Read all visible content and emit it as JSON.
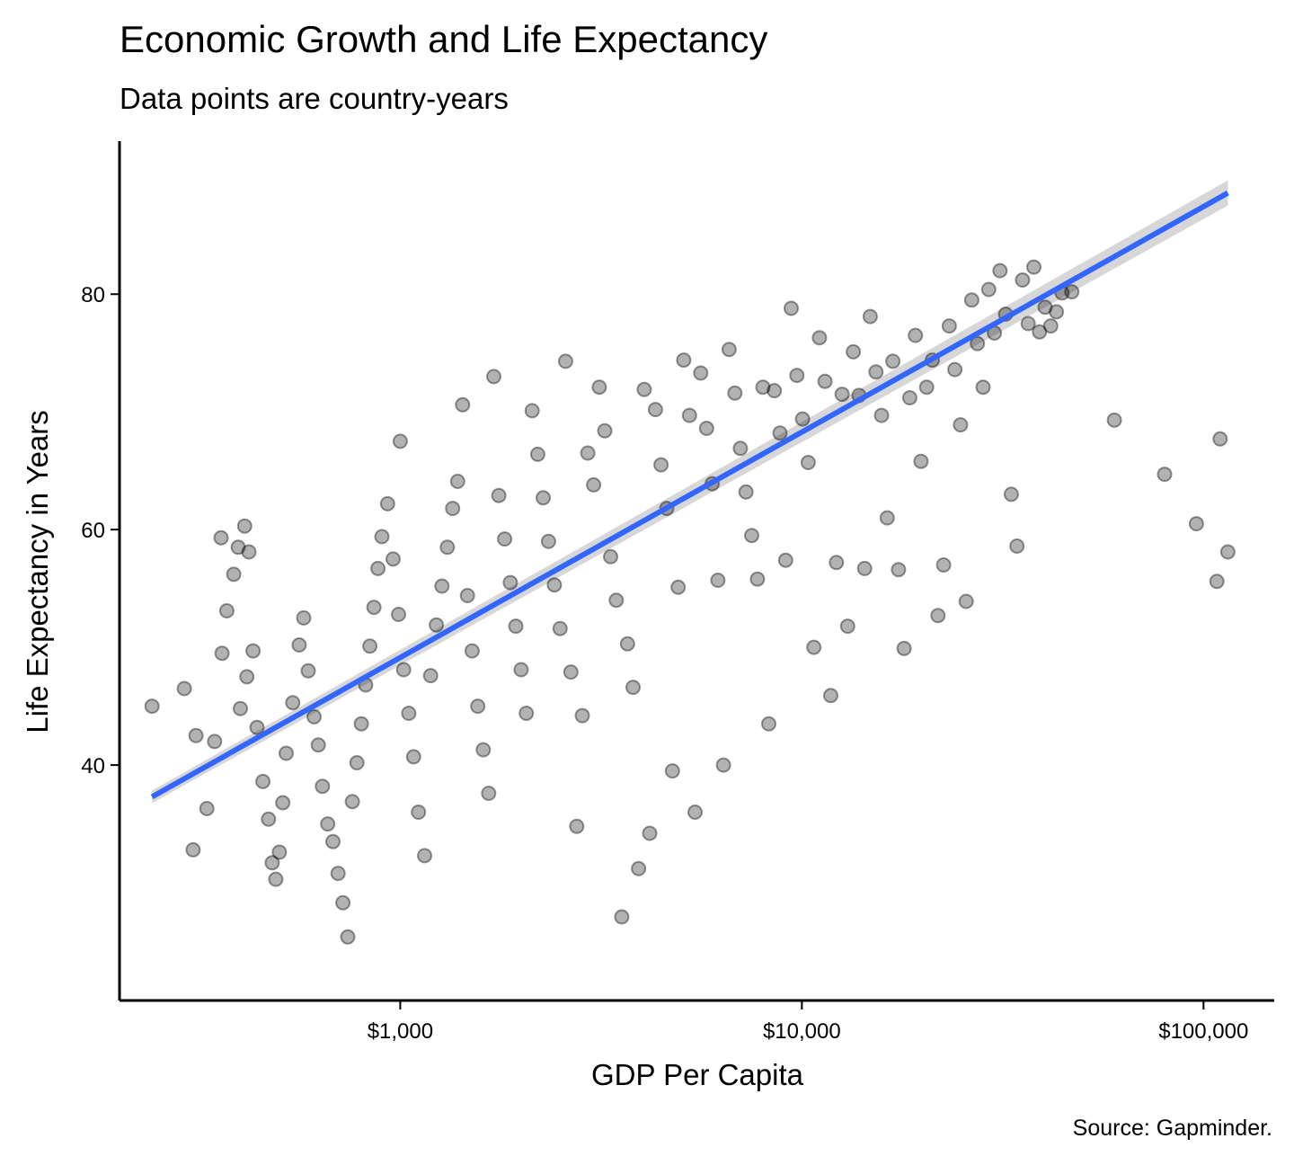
{
  "chart_data": {
    "type": "scatter",
    "title": "Economic Growth and Life Expectancy",
    "subtitle": "Data points are country-years",
    "caption": "Source: Gapminder.",
    "xlabel": "GDP Per Capita",
    "ylabel": "Life Expectancy in Years",
    "x_scale": "log10",
    "xlim": [
      200,
      150000
    ],
    "ylim": [
      20,
      93
    ],
    "x_ticks": [
      {
        "value": 1000,
        "label": "$1,000"
      },
      {
        "value": 10000,
        "label": "$10,000"
      },
      {
        "value": 100000,
        "label": "$100,000"
      }
    ],
    "y_ticks": [
      {
        "value": 40,
        "label": "40"
      },
      {
        "value": 60,
        "label": "60"
      },
      {
        "value": 80,
        "label": "80"
      }
    ],
    "grid": false,
    "point_color": "#000000",
    "point_opacity": 0.3,
    "trend": {
      "method": "linear fit on log10(x)",
      "color": "#3366FF",
      "band_color": "#D3D3D3",
      "points": [
        [
          241,
          37.3
        ],
        [
          115000,
          88.6
        ]
      ]
    },
    "points": [
      [
        241,
        45.0
      ],
      [
        290,
        46.5
      ],
      [
        310,
        42.5
      ],
      [
        305,
        32.8
      ],
      [
        330,
        36.3
      ],
      [
        345,
        42.0
      ],
      [
        358,
        59.3
      ],
      [
        370,
        53.1
      ],
      [
        385,
        56.2
      ],
      [
        395,
        58.5
      ],
      [
        410,
        60.3
      ],
      [
        420,
        58.1
      ],
      [
        360,
        49.5
      ],
      [
        400,
        44.8
      ],
      [
        415,
        47.5
      ],
      [
        430,
        49.7
      ],
      [
        440,
        43.2
      ],
      [
        455,
        38.6
      ],
      [
        470,
        35.4
      ],
      [
        480,
        31.7
      ],
      [
        490,
        30.3
      ],
      [
        500,
        32.6
      ],
      [
        510,
        36.8
      ],
      [
        520,
        41.0
      ],
      [
        540,
        45.3
      ],
      [
        560,
        50.2
      ],
      [
        575,
        52.5
      ],
      [
        590,
        48.0
      ],
      [
        610,
        44.1
      ],
      [
        625,
        41.7
      ],
      [
        640,
        38.2
      ],
      [
        660,
        35.0
      ],
      [
        680,
        33.5
      ],
      [
        700,
        30.8
      ],
      [
        720,
        28.3
      ],
      [
        740,
        25.4
      ],
      [
        760,
        36.9
      ],
      [
        780,
        40.2
      ],
      [
        800,
        43.5
      ],
      [
        820,
        46.8
      ],
      [
        840,
        50.1
      ],
      [
        860,
        53.4
      ],
      [
        880,
        56.7
      ],
      [
        900,
        59.4
      ],
      [
        930,
        62.2
      ],
      [
        960,
        57.5
      ],
      [
        990,
        52.8
      ],
      [
        1000,
        67.5
      ],
      [
        1020,
        48.1
      ],
      [
        1050,
        44.4
      ],
      [
        1080,
        40.7
      ],
      [
        1110,
        36.0
      ],
      [
        1150,
        32.3
      ],
      [
        1190,
        47.6
      ],
      [
        1230,
        51.9
      ],
      [
        1270,
        55.2
      ],
      [
        1310,
        58.5
      ],
      [
        1350,
        61.8
      ],
      [
        1390,
        64.1
      ],
      [
        1430,
        70.6
      ],
      [
        1470,
        54.4
      ],
      [
        1510,
        49.7
      ],
      [
        1560,
        45.0
      ],
      [
        1610,
        41.3
      ],
      [
        1660,
        37.6
      ],
      [
        1710,
        73.0
      ],
      [
        1760,
        62.9
      ],
      [
        1820,
        59.2
      ],
      [
        1880,
        55.5
      ],
      [
        1940,
        51.8
      ],
      [
        2000,
        48.1
      ],
      [
        2060,
        44.4
      ],
      [
        2130,
        70.1
      ],
      [
        2200,
        66.4
      ],
      [
        2270,
        62.7
      ],
      [
        2340,
        59.0
      ],
      [
        2420,
        55.3
      ],
      [
        2500,
        51.6
      ],
      [
        2580,
        74.3
      ],
      [
        2660,
        47.9
      ],
      [
        2750,
        34.8
      ],
      [
        2840,
        44.2
      ],
      [
        2930,
        66.5
      ],
      [
        3030,
        63.8
      ],
      [
        3130,
        72.1
      ],
      [
        3230,
        68.4
      ],
      [
        3340,
        57.7
      ],
      [
        3450,
        54.0
      ],
      [
        3560,
        27.1
      ],
      [
        3680,
        50.3
      ],
      [
        3800,
        46.6
      ],
      [
        3920,
        31.2
      ],
      [
        4050,
        71.9
      ],
      [
        4180,
        34.2
      ],
      [
        4320,
        70.2
      ],
      [
        4460,
        65.5
      ],
      [
        4610,
        61.8
      ],
      [
        4760,
        39.5
      ],
      [
        4920,
        55.1
      ],
      [
        5080,
        74.4
      ],
      [
        5250,
        69.7
      ],
      [
        5420,
        36.0
      ],
      [
        5600,
        73.3
      ],
      [
        5790,
        68.6
      ],
      [
        5980,
        63.9
      ],
      [
        6180,
        55.7
      ],
      [
        6380,
        40.0
      ],
      [
        6590,
        75.3
      ],
      [
        6810,
        71.6
      ],
      [
        7030,
        66.9
      ],
      [
        7260,
        63.2
      ],
      [
        7500,
        59.5
      ],
      [
        7750,
        55.8
      ],
      [
        8000,
        72.1
      ],
      [
        8270,
        43.5
      ],
      [
        8540,
        71.8
      ],
      [
        8820,
        68.2
      ],
      [
        9110,
        57.4
      ],
      [
        9410,
        78.8
      ],
      [
        9720,
        73.1
      ],
      [
        10040,
        69.4
      ],
      [
        10370,
        65.7
      ],
      [
        10710,
        50.0
      ],
      [
        11060,
        76.3
      ],
      [
        11420,
        72.6
      ],
      [
        11800,
        45.9
      ],
      [
        12190,
        57.2
      ],
      [
        12590,
        71.5
      ],
      [
        13000,
        51.8
      ],
      [
        13430,
        75.1
      ],
      [
        13870,
        71.4
      ],
      [
        14330,
        56.7
      ],
      [
        14800,
        78.1
      ],
      [
        15290,
        73.4
      ],
      [
        15790,
        69.7
      ],
      [
        16310,
        61.0
      ],
      [
        16850,
        74.3
      ],
      [
        17400,
        56.6
      ],
      [
        17970,
        49.9
      ],
      [
        18560,
        71.2
      ],
      [
        19170,
        76.5
      ],
      [
        19800,
        65.8
      ],
      [
        20450,
        72.1
      ],
      [
        21120,
        74.4
      ],
      [
        21820,
        52.7
      ],
      [
        22540,
        57.0
      ],
      [
        23280,
        77.3
      ],
      [
        24040,
        73.6
      ],
      [
        24830,
        68.9
      ],
      [
        25650,
        53.9
      ],
      [
        26490,
        79.5
      ],
      [
        27360,
        75.8
      ],
      [
        28260,
        72.1
      ],
      [
        29190,
        80.4
      ],
      [
        30150,
        76.7
      ],
      [
        31140,
        82.0
      ],
      [
        32160,
        78.3
      ],
      [
        33220,
        63.0
      ],
      [
        34310,
        58.6
      ],
      [
        35440,
        81.2
      ],
      [
        36600,
        77.5
      ],
      [
        37810,
        82.3
      ],
      [
        39050,
        76.8
      ],
      [
        40330,
        78.9
      ],
      [
        41660,
        77.3
      ],
      [
        43030,
        78.5
      ],
      [
        44440,
        80.1
      ],
      [
        47000,
        80.2
      ],
      [
        60000,
        69.3
      ],
      [
        80000,
        64.7
      ],
      [
        96000,
        60.5
      ],
      [
        108000,
        55.6
      ],
      [
        110000,
        67.7
      ],
      [
        115000,
        58.1
      ]
    ]
  }
}
